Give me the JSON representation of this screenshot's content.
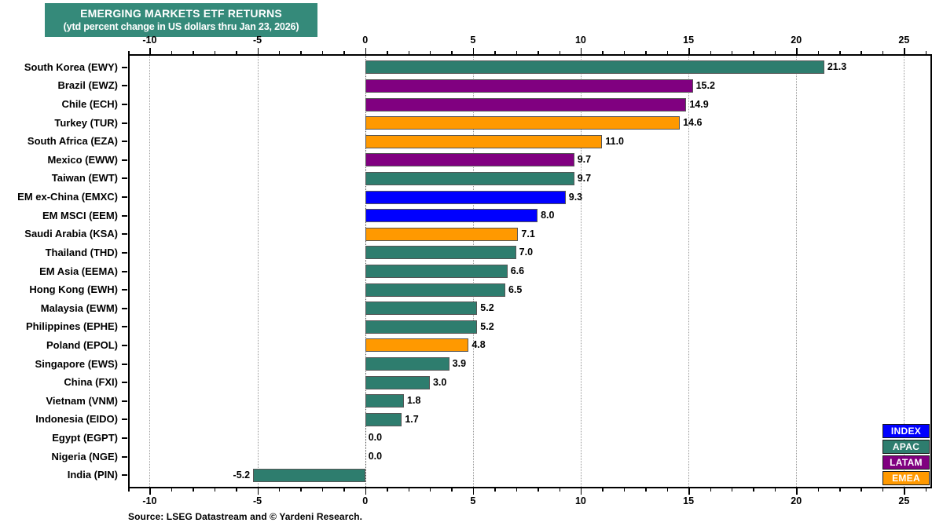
{
  "title": {
    "line1": "EMERGING MARKETS ETF RETURNS",
    "line2": "(ytd percent change in US dollars thru Jan 23, 2026)",
    "bg_color": "#358A7A",
    "text_color": "#FFFFFF"
  },
  "source_note": "Source: LSEG Datastream and © Yardeni Research.",
  "legend": {
    "position": "bottom-right",
    "items": [
      {
        "label": "INDEX",
        "color": "#0000FF"
      },
      {
        "label": "APAC",
        "color": "#2E7D6E"
      },
      {
        "label": "LATAM",
        "color": "#800080"
      },
      {
        "label": "EMEA",
        "color": "#FF9900"
      }
    ]
  },
  "chart_data": {
    "type": "bar",
    "orientation": "horizontal",
    "title": "EMERGING MARKETS ETF RETURNS",
    "subtitle": "(ytd percent change in US dollars thru Jan 23, 2026)",
    "xlabel": "ytd percent change",
    "ylabel": "",
    "xlim": [
      -11,
      26.3
    ],
    "x_ticks": [
      -10,
      -5,
      0,
      5,
      10,
      15,
      20,
      25
    ],
    "minor_tick_step": 1,
    "grid": "vertical dotted at major ticks, dark dotted zero line",
    "value_label_decimals": 1,
    "region_colors": {
      "INDEX": "#0000FF",
      "APAC": "#2E7D6E",
      "LATAM": "#800080",
      "EMEA": "#FF9900"
    },
    "bars": [
      {
        "label": "South Korea (EWY)",
        "value": 21.3,
        "region": "APAC"
      },
      {
        "label": "Brazil (EWZ)",
        "value": 15.2,
        "region": "LATAM"
      },
      {
        "label": "Chile (ECH)",
        "value": 14.9,
        "region": "LATAM"
      },
      {
        "label": "Turkey (TUR)",
        "value": 14.6,
        "region": "EMEA"
      },
      {
        "label": "South Africa (EZA)",
        "value": 11.0,
        "region": "EMEA"
      },
      {
        "label": "Mexico (EWW)",
        "value": 9.7,
        "region": "LATAM"
      },
      {
        "label": "Taiwan (EWT)",
        "value": 9.7,
        "region": "APAC"
      },
      {
        "label": "EM ex-China (EMXC)",
        "value": 9.3,
        "region": "INDEX"
      },
      {
        "label": "EM MSCI (EEM)",
        "value": 8.0,
        "region": "INDEX"
      },
      {
        "label": "Saudi Arabia (KSA)",
        "value": 7.1,
        "region": "EMEA"
      },
      {
        "label": "Thailand (THD)",
        "value": 7.0,
        "region": "APAC"
      },
      {
        "label": "EM Asia (EEMA)",
        "value": 6.6,
        "region": "APAC"
      },
      {
        "label": "Hong Kong (EWH)",
        "value": 6.5,
        "region": "APAC"
      },
      {
        "label": "Malaysia (EWM)",
        "value": 5.2,
        "region": "APAC"
      },
      {
        "label": "Philippines (EPHE)",
        "value": 5.2,
        "region": "APAC"
      },
      {
        "label": "Poland (EPOL)",
        "value": 4.8,
        "region": "EMEA"
      },
      {
        "label": "Singapore (EWS)",
        "value": 3.9,
        "region": "APAC"
      },
      {
        "label": "China (FXI)",
        "value": 3.0,
        "region": "APAC"
      },
      {
        "label": "Vietnam (VNM)",
        "value": 1.8,
        "region": "APAC"
      },
      {
        "label": "Indonesia (EIDO)",
        "value": 1.7,
        "region": "APAC"
      },
      {
        "label": "Egypt (EGPT)",
        "value": 0.0,
        "region": "EMEA"
      },
      {
        "label": "Nigeria (NGE)",
        "value": 0.0,
        "region": "EMEA"
      },
      {
        "label": "India (PIN)",
        "value": -5.2,
        "region": "APAC"
      }
    ]
  }
}
